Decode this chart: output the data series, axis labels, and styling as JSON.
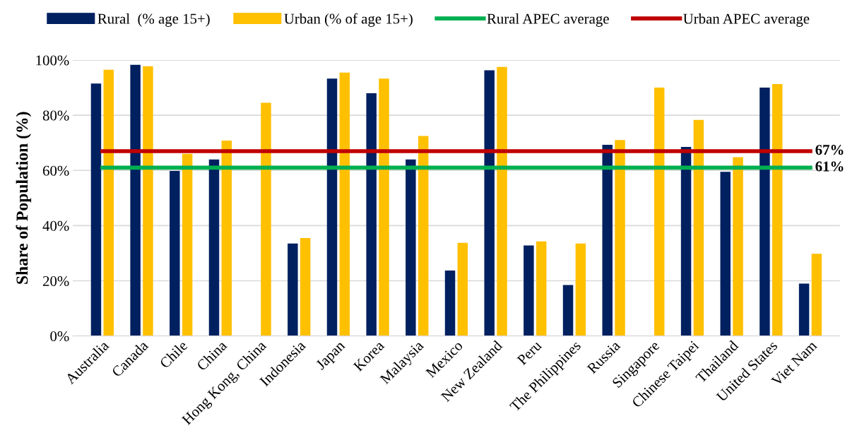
{
  "chart_data": {
    "type": "bar",
    "ylabel": "Share of Population (%)",
    "categories": [
      "Australia",
      "Canada",
      "Chile",
      "China",
      "Hong Kong, China",
      "Indonesia",
      "Japan",
      "Korea",
      "Malaysia",
      "Mexico",
      "New Zealand",
      "Peru",
      "The Philippines",
      "Russia",
      "Singapore",
      "Chinese Taipei",
      "Thailand",
      "United States",
      "Viet Nam"
    ],
    "series": [
      {
        "name": "Rural  (% age 15+)",
        "color": "#002060",
        "values": [
          91.5,
          98.3,
          59.8,
          64,
          null,
          33.5,
          93.3,
          88,
          64,
          23.7,
          96.3,
          32.8,
          18.5,
          69.3,
          null,
          68.5,
          59.5,
          90,
          19
        ]
      },
      {
        "name": "Urban (% of age 15+)",
        "color": "#ffc000",
        "values": [
          96.5,
          97.8,
          66,
          70.8,
          84.5,
          35.5,
          95.5,
          93.3,
          72.5,
          33.8,
          97.5,
          34.3,
          33.5,
          71,
          90,
          78.3,
          64.8,
          91.3,
          29.8
        ]
      },
      {
        "name": "Rural APEC average",
        "type": "line",
        "color": "#00b050",
        "values": [
          61,
          61,
          61,
          61,
          61,
          61,
          61,
          61,
          61,
          61,
          61,
          61,
          61,
          61,
          61,
          61,
          61,
          61,
          61
        ],
        "value_labels": [
          null,
          null,
          null,
          null,
          null,
          null,
          null,
          null,
          null,
          null,
          null,
          null,
          null,
          null,
          null,
          null,
          null,
          null,
          "61%"
        ]
      },
      {
        "name": "Urban APEC average",
        "type": "line",
        "color": "#c00000",
        "values": [
          67,
          67,
          67,
          67,
          67,
          67,
          67,
          67,
          67,
          67,
          67,
          67,
          67,
          67,
          67,
          67,
          67,
          67,
          67
        ],
        "value_labels": [
          null,
          null,
          null,
          null,
          null,
          null,
          null,
          null,
          null,
          null,
          null,
          null,
          null,
          null,
          null,
          null,
          null,
          null,
          "67%"
        ]
      }
    ],
    "ylim": [
      0,
      100
    ],
    "yticks": [
      {
        "value": 0,
        "label": "0%"
      },
      {
        "value": 20,
        "label": "20%"
      },
      {
        "value": 40,
        "label": "40%"
      },
      {
        "value": 60,
        "label": "60%"
      },
      {
        "value": 80,
        "label": "80%"
      },
      {
        "value": 100,
        "label": "100%"
      }
    ],
    "grid": "y",
    "legend": "top"
  }
}
